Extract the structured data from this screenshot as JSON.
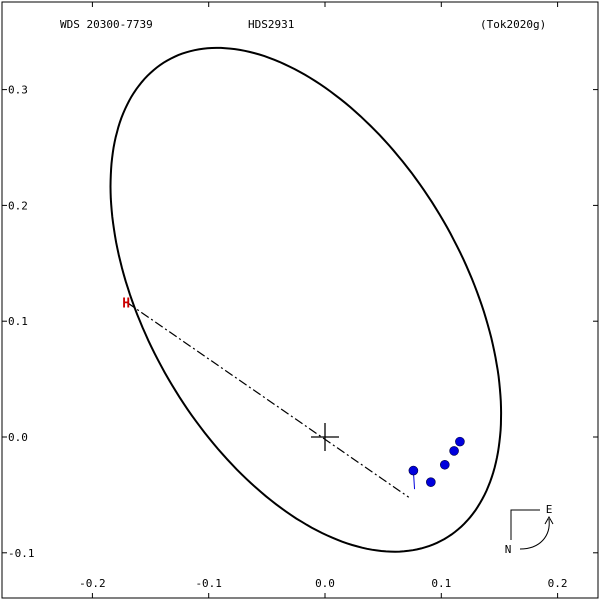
{
  "header": {
    "left": "WDS 20300-7739",
    "center": "HDS2931",
    "right": "(Tok2020g)"
  },
  "chart_data": {
    "type": "scatter",
    "title": "",
    "xlabel": "",
    "ylabel": "",
    "xlim": [
      -0.25,
      0.23
    ],
    "ylim": [
      -0.11,
      0.355
    ],
    "x_ticks": [
      {
        "value": -0.2,
        "label": "-0.2"
      },
      {
        "value": -0.1,
        "label": "-0.1"
      },
      {
        "value": 0.0,
        "label": "0.0"
      },
      {
        "value": 0.1,
        "label": "0.1"
      },
      {
        "value": 0.2,
        "label": "0.2"
      }
    ],
    "y_ticks": [
      {
        "value": 0.3,
        "label": "0.3"
      },
      {
        "value": 0.2,
        "label": "0.2"
      },
      {
        "value": 0.1,
        "label": "0.1"
      },
      {
        "value": 0.0,
        "label": "0.0"
      },
      {
        "value": -0.1,
        "label": "-0.1"
      }
    ],
    "orbit_ellipse": {
      "center": [
        -0.0165,
        0.1185
      ],
      "semi_major": 0.2385,
      "semi_minor": 0.1365,
      "rotation_deg": 120,
      "color": "#000000"
    },
    "primary_star": [
      0.0,
      0.0
    ],
    "line_of_nodes": {
      "from": [
        -0.17,
        0.116
      ],
      "to": [
        0.072,
        -0.052
      ],
      "style": "dash-dot"
    },
    "periastron_marker": {
      "label": "H",
      "x": -0.171,
      "y": 0.116,
      "color": "#cc0000"
    },
    "observations": [
      {
        "x": 0.076,
        "y": -0.029,
        "ox": 0.077,
        "oy": -0.045
      },
      {
        "x": 0.091,
        "y": -0.039,
        "ox": 0.091,
        "oy": -0.039
      },
      {
        "x": 0.103,
        "y": -0.024,
        "ox": 0.103,
        "oy": -0.026
      },
      {
        "x": 0.111,
        "y": -0.012,
        "ox": 0.111,
        "oy": -0.013
      },
      {
        "x": 0.116,
        "y": -0.004,
        "ox": 0.116,
        "oy": -0.004
      }
    ],
    "observation_color": "#0000dd",
    "compass": {
      "north": "N",
      "east": "E"
    }
  }
}
